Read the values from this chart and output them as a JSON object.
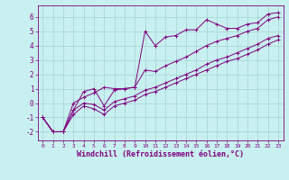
{
  "xlabel": "Windchill (Refroidissement éolien,°C)",
  "bg_color": "#c8f0f0",
  "grid_color": "#a8d8d8",
  "line_color": "#800080",
  "x_ticks": [
    0,
    1,
    2,
    3,
    4,
    5,
    6,
    7,
    8,
    9,
    10,
    11,
    12,
    13,
    14,
    15,
    16,
    17,
    18,
    19,
    20,
    21,
    22,
    23
  ],
  "y_ticks": [
    -2,
    -1,
    0,
    1,
    2,
    3,
    4,
    5,
    6
  ],
  "ylim": [
    -2.6,
    6.8
  ],
  "xlim": [
    -0.5,
    23.5
  ],
  "series1_x": [
    0,
    1,
    2,
    3,
    4,
    5,
    6,
    7,
    8,
    9,
    10,
    11,
    12,
    13,
    14,
    15,
    16,
    17,
    18,
    19,
    20,
    21,
    22,
    23
  ],
  "series1_y": [
    -1,
    -2,
    -2,
    -0.5,
    0.8,
    1.0,
    -0.2,
    0.9,
    1.0,
    1.1,
    5.0,
    4.0,
    4.6,
    4.7,
    5.1,
    5.1,
    5.8,
    5.5,
    5.2,
    5.2,
    5.5,
    5.6,
    6.2,
    6.3
  ],
  "series2_x": [
    0,
    1,
    2,
    3,
    4,
    5,
    6,
    7,
    8,
    9,
    10,
    11,
    12,
    13,
    14,
    15,
    16,
    17,
    18,
    19,
    20,
    21,
    22,
    23
  ],
  "series2_y": [
    -1,
    -2,
    -2,
    0.0,
    0.4,
    0.7,
    1.1,
    1.0,
    1.0,
    1.1,
    2.3,
    2.2,
    2.6,
    2.9,
    3.2,
    3.6,
    4.0,
    4.3,
    4.5,
    4.7,
    5.0,
    5.2,
    5.8,
    6.0
  ],
  "series3_x": [
    0,
    1,
    2,
    3,
    4,
    5,
    6,
    7,
    8,
    9,
    10,
    11,
    12,
    13,
    14,
    15,
    16,
    17,
    18,
    19,
    20,
    21,
    22,
    23
  ],
  "series3_y": [
    -1,
    -2,
    -2,
    -0.5,
    0.0,
    -0.1,
    -0.5,
    0.1,
    0.3,
    0.5,
    0.9,
    1.1,
    1.4,
    1.7,
    2.0,
    2.3,
    2.7,
    3.0,
    3.2,
    3.5,
    3.8,
    4.1,
    4.5,
    4.7
  ],
  "series4_x": [
    0,
    1,
    2,
    3,
    4,
    5,
    6,
    7,
    8,
    9,
    10,
    11,
    12,
    13,
    14,
    15,
    16,
    17,
    18,
    19,
    20,
    21,
    22,
    23
  ],
  "series4_y": [
    -1,
    -2,
    -2,
    -0.8,
    -0.2,
    -0.4,
    -0.8,
    -0.2,
    0.0,
    0.2,
    0.6,
    0.8,
    1.1,
    1.4,
    1.7,
    2.0,
    2.3,
    2.6,
    2.9,
    3.1,
    3.4,
    3.7,
    4.1,
    4.4
  ]
}
